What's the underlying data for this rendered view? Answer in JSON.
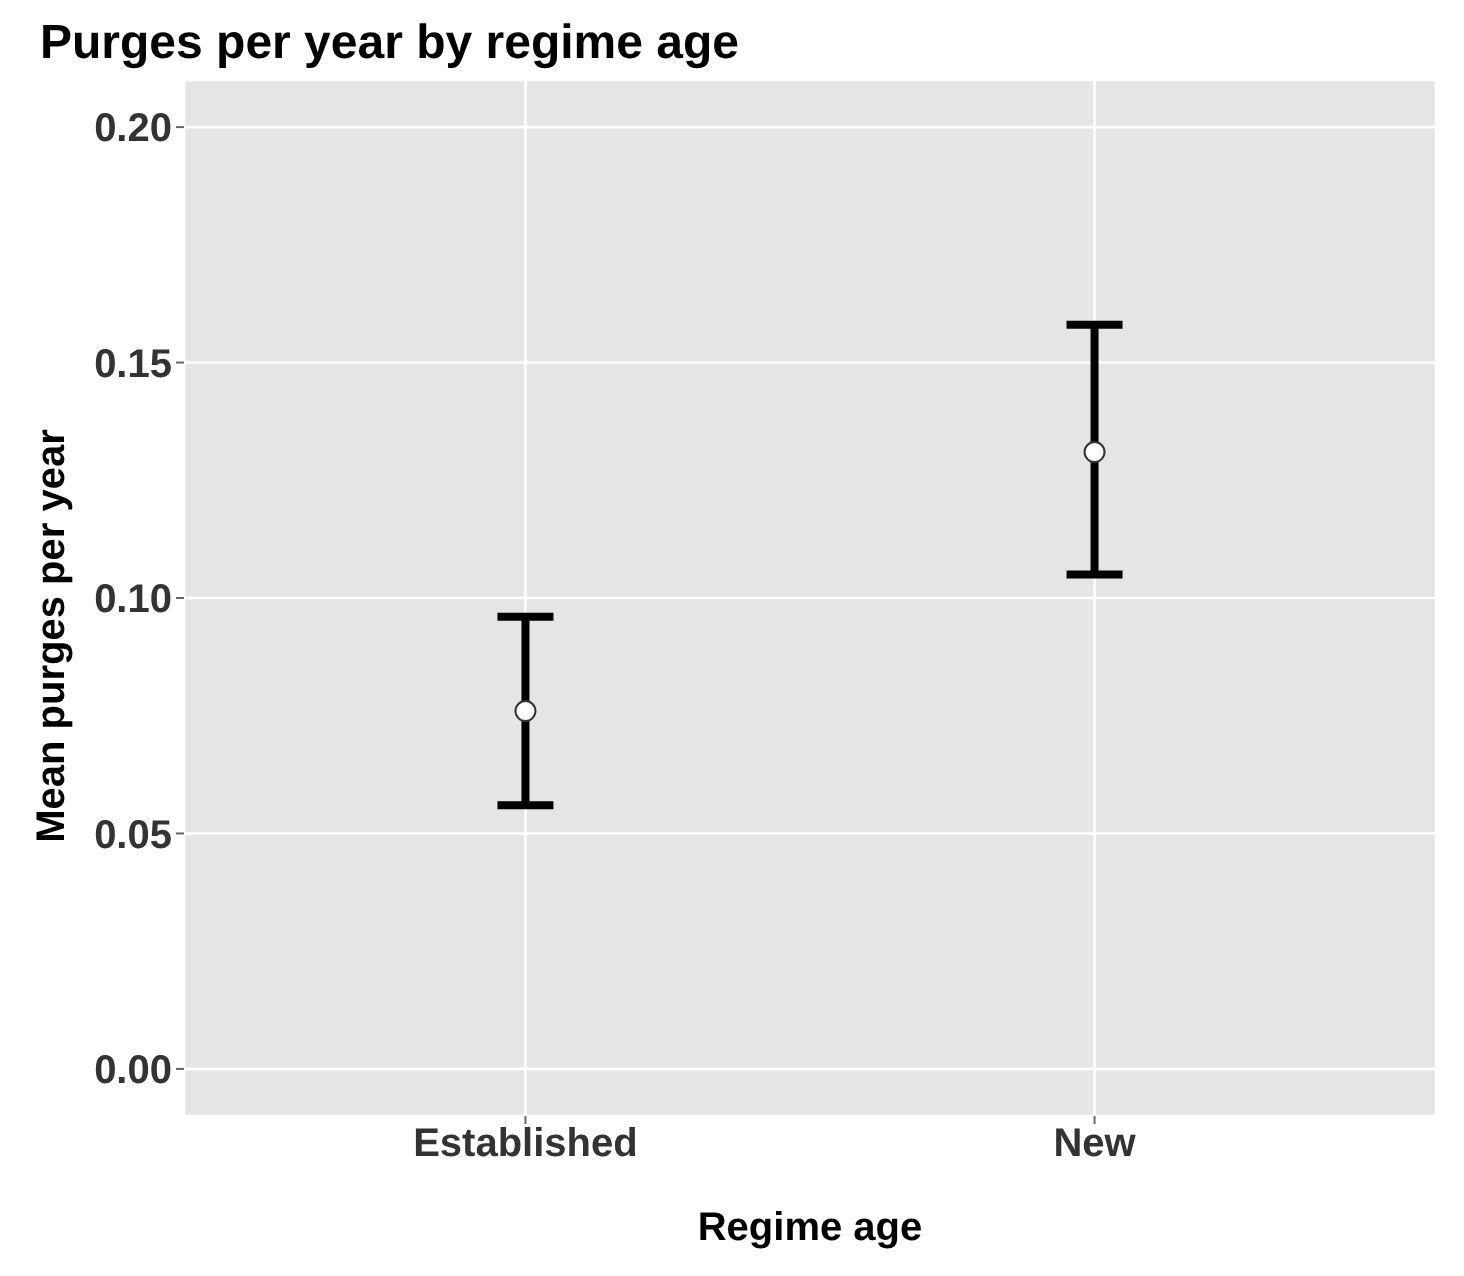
{
  "chart_data": {
    "type": "scatter",
    "title": "Purges per year by regime age",
    "xlabel": "Regime age",
    "ylabel": "Mean purges per year",
    "categories": [
      "Established",
      "New"
    ],
    "series": [
      {
        "color": "#ffffff",
        "values": [
          0.076,
          0.131
        ],
        "errors": [
          [
            0.056,
            0.096
          ],
          [
            0.105,
            0.158
          ]
        ]
      }
    ],
    "ylim": [
      -0.01,
      0.21
    ],
    "yticks": [
      {
        "value": 0,
        "label": "0.00"
      },
      {
        "value": 0.05,
        "label": "0.05"
      },
      {
        "value": 0.1,
        "label": "0.10"
      },
      {
        "value": 0.15,
        "label": "0.15"
      },
      {
        "value": 0.2,
        "label": "0.20"
      }
    ],
    "grid": true,
    "marker": "circle"
  }
}
